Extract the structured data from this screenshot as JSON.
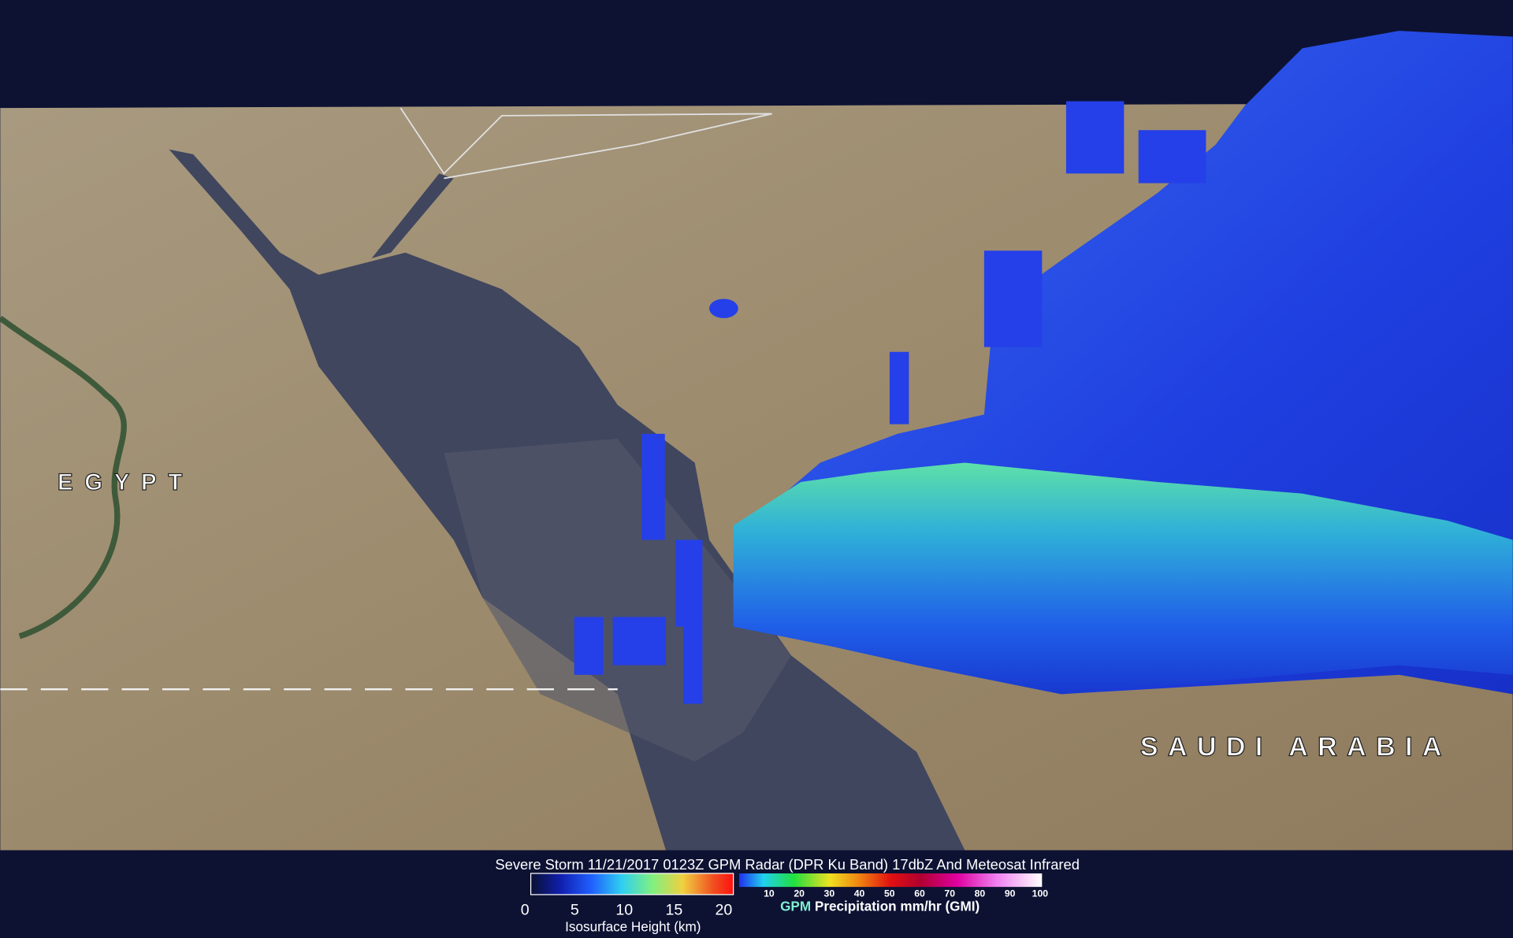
{
  "title": "Severe Storm 11/21/2017 0123Z GPM Radar (DPR Ku Band) 17dbZ And Meteosat Infrared",
  "map_labels": [
    "EGYPT",
    "SAUDI ARABIA"
  ],
  "height_legend": {
    "ticks": [
      0,
      5,
      10,
      15,
      20
    ],
    "label": "Isosurface Height (km)"
  },
  "precip_legend": {
    "ticks": [
      10,
      20,
      30,
      40,
      50,
      60,
      70,
      80,
      90,
      100
    ],
    "label": [
      "GPM",
      "Precipitation mm/hr (GMI)"
    ]
  }
}
